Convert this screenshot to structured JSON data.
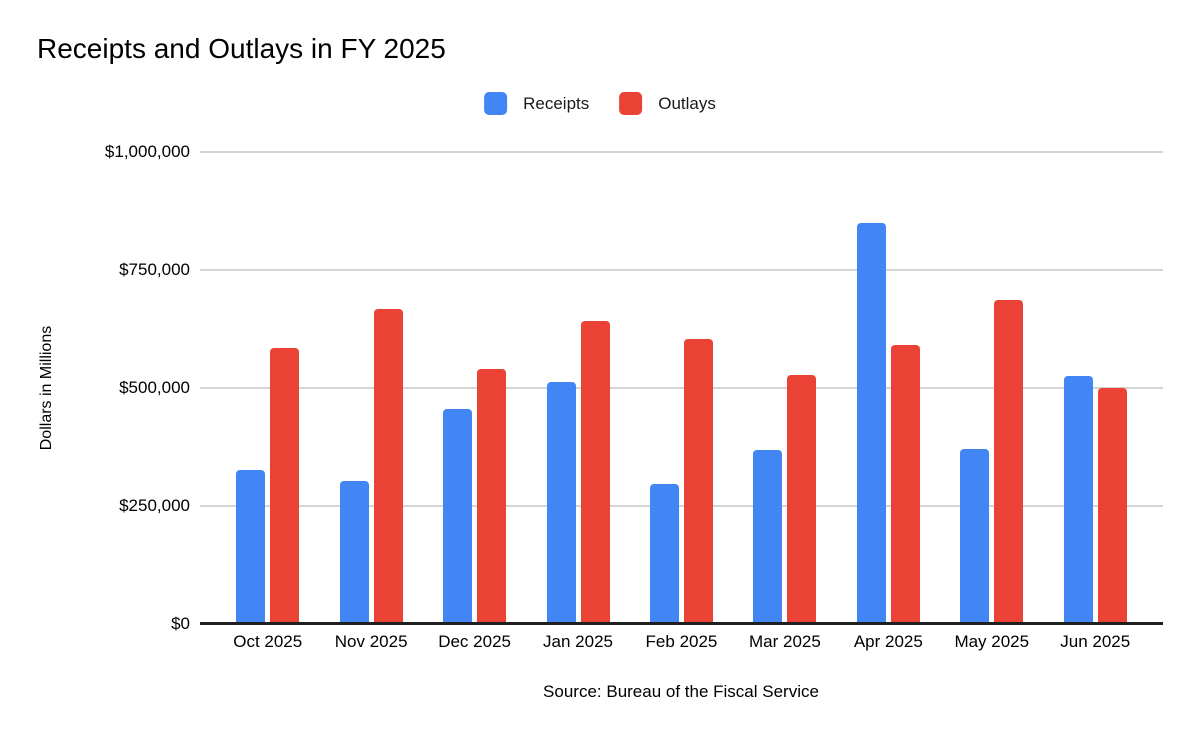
{
  "title": "Receipts and Outlays in FY 2025",
  "source_note": "Source: Bureau of the Fiscal Service",
  "chart_data": {
    "type": "bar",
    "title": "Receipts and Outlays in FY 2025",
    "categories": [
      "Oct 2025",
      "Nov 2025",
      "Dec 2025",
      "Jan 2025",
      "Feb 2025",
      "Mar 2025",
      "Apr 2025",
      "May 2025",
      "Jun 2025"
    ],
    "series": [
      {
        "name": "Receipts",
        "color": "#4285F4",
        "values": [
          327000,
          302000,
          455000,
          513000,
          296000,
          368000,
          850000,
          371000,
          526000
        ]
      },
      {
        "name": "Outlays",
        "color": "#EA4335",
        "values": [
          584000,
          668000,
          541000,
          642000,
          603000,
          528000,
          592000,
          687000,
          499000
        ]
      }
    ],
    "xlabel": "",
    "ylabel": "Dollars in Millions",
    "ylim": [
      0,
      1000000
    ],
    "ytick_labels_top_to_bottom": [
      "$1,000,000",
      "$750,000",
      "$500,000",
      "$250,000",
      "$0"
    ],
    "grid": true,
    "legend_position": "top",
    "colors": {
      "receipts": "#4285F4",
      "outlays": "#EA4335",
      "gridline": "#d4d4d4",
      "axis": "#1f1f1f",
      "text": "#000000",
      "background": "#ffffff"
    }
  }
}
